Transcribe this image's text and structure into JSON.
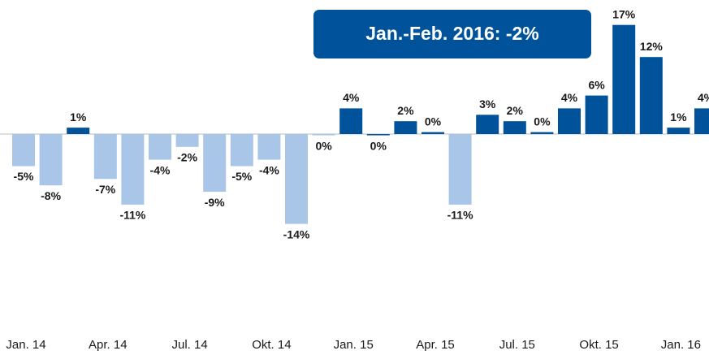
{
  "chart_data": {
    "type": "bar",
    "annotation": "Jan.-Feb. 2016: -2%",
    "categories": [
      "Jan. 14",
      null,
      null,
      "Apr. 14",
      null,
      null,
      "Jul. 14",
      null,
      null,
      "Okt. 14",
      null,
      null,
      "Jan. 15",
      null,
      null,
      "Apr. 15",
      null,
      null,
      "Jul. 15",
      null,
      null,
      "Okt. 15",
      null,
      null,
      "Jan. 16",
      null
    ],
    "values": [
      -5,
      -8,
      1,
      -7,
      -11,
      -4,
      -2,
      -9,
      -5,
      -4,
      -14,
      -0.2,
      4,
      -0.2,
      2,
      0.3,
      -11,
      3,
      2,
      0.3,
      4,
      6,
      17,
      12,
      1,
      4
    ],
    "value_labels": [
      "-5%",
      "-8%",
      "1%",
      "-7%",
      "-11%",
      "-4%",
      "-2%",
      "-9%",
      "-5%",
      "-4%",
      "-14%",
      "0%",
      "4%",
      "0%",
      "2%",
      "0%",
      "-11%",
      "3%",
      "2%",
      "0%",
      "4%",
      "6%",
      "17%",
      "12%",
      "1%",
      "4%"
    ],
    "colors": [
      "#a9c6e9",
      "#a9c6e9",
      "#00539b",
      "#a9c6e9",
      "#a9c6e9",
      "#a9c6e9",
      "#a9c6e9",
      "#a9c6e9",
      "#a9c6e9",
      "#a9c6e9",
      "#a9c6e9",
      "#a9c6e9",
      "#00539b",
      "#00539b",
      "#00539b",
      "#00539b",
      "#a9c6e9",
      "#00539b",
      "#00539b",
      "#00539b",
      "#00539b",
      "#00539b",
      "#00539b",
      "#00539b",
      "#00539b",
      "#00539b"
    ],
    "ylim": [
      -30,
      20
    ]
  }
}
